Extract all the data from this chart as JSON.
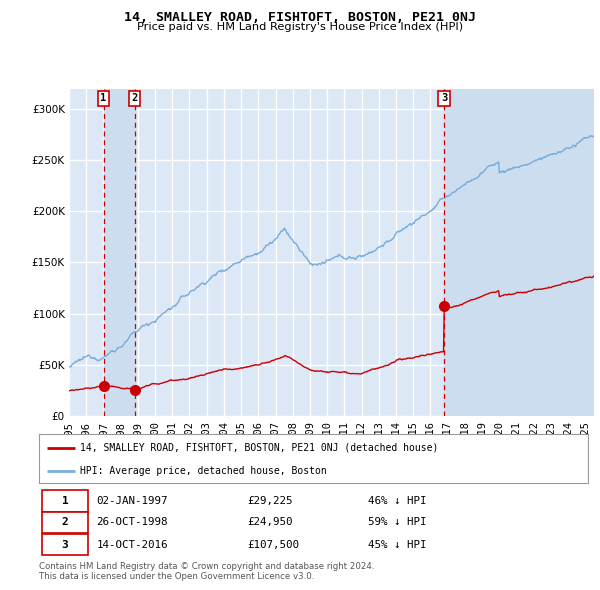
{
  "title": "14, SMALLEY ROAD, FISHTOFT, BOSTON, PE21 0NJ",
  "subtitle": "Price paid vs. HM Land Registry's House Price Index (HPI)",
  "legend_label_red": "14, SMALLEY ROAD, FISHTOFT, BOSTON, PE21 0NJ (detached house)",
  "legend_label_blue": "HPI: Average price, detached house, Boston",
  "transactions": [
    {
      "num": 1,
      "date": "02-JAN-1997",
      "price": 29225,
      "pct": "46%",
      "dir": "↓",
      "year_x": 1997.01
    },
    {
      "num": 2,
      "date": "26-OCT-1998",
      "price": 24950,
      "pct": "59%",
      "dir": "↓",
      "year_x": 1998.82
    },
    {
      "num": 3,
      "date": "14-OCT-2016",
      "price": 107500,
      "pct": "45%",
      "dir": "↓",
      "year_x": 2016.79
    }
  ],
  "sale_years": [
    1997.01,
    1998.82,
    2016.79
  ],
  "sale_prices": [
    29225,
    24950,
    107500
  ],
  "footnote1": "Contains HM Land Registry data © Crown copyright and database right 2024.",
  "footnote2": "This data is licensed under the Open Government Licence v3.0.",
  "fig_bg_color": "#ffffff",
  "plot_bg_color": "#dce8f5",
  "red_color": "#cc0000",
  "blue_color": "#7aaddb",
  "shade_color": "#ccddf0",
  "grid_color": "#ffffff",
  "ylim": [
    0,
    320000
  ],
  "yticks": [
    0,
    50000,
    100000,
    150000,
    200000,
    250000,
    300000
  ],
  "xlim_start": 1995.0,
  "xlim_end": 2025.5
}
